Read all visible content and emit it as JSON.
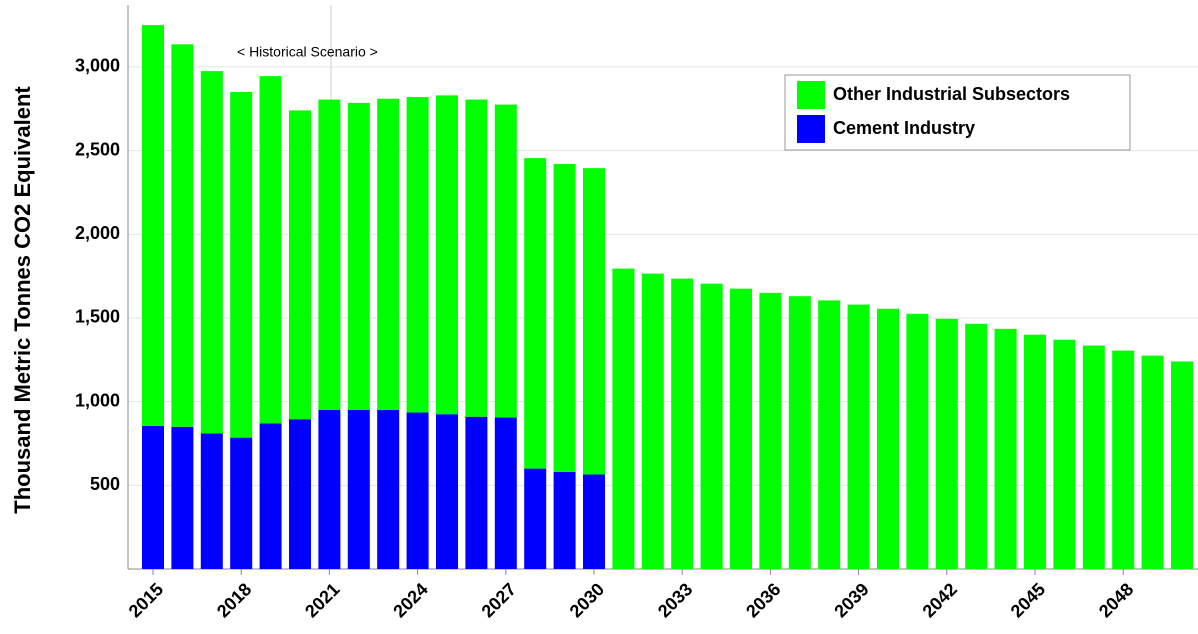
{
  "chart_data": {
    "type": "stacked_bar",
    "y_label": "Thousand Metric Tonnes CO2 Equivalent",
    "annotation": "< Historical   Scenario >",
    "categories": [
      "2015",
      null,
      null,
      "2018",
      null,
      null,
      "2021",
      null,
      null,
      "2024",
      null,
      null,
      "2027",
      null,
      null,
      "2030",
      null,
      null,
      "2033",
      null,
      null,
      "2036",
      null,
      null,
      "2039",
      null,
      null,
      "2042",
      null,
      null,
      "2045",
      null,
      null,
      "2048",
      null,
      null
    ],
    "series": [
      {
        "name": "Cement Industry",
        "color": "#0000ff",
        "values": [
          855,
          850,
          810,
          785,
          870,
          895,
          950,
          950,
          950,
          935,
          925,
          910,
          905,
          600,
          580,
          565,
          0,
          0,
          0,
          0,
          0,
          0,
          0,
          0,
          0,
          0,
          0,
          0,
          0,
          0,
          0,
          0,
          0,
          0,
          0,
          0
        ]
      },
      {
        "name": "Other Industrial Subsectors",
        "color": "#00ff00",
        "values": [
          2395,
          2285,
          2165,
          2065,
          2075,
          1845,
          1855,
          1835,
          1860,
          1885,
          1905,
          1895,
          1870,
          1855,
          1840,
          1830,
          1795,
          1765,
          1735,
          1705,
          1675,
          1650,
          1630,
          1605,
          1580,
          1555,
          1525,
          1495,
          1465,
          1435,
          1400,
          1370,
          1335,
          1305,
          1275,
          1240
        ]
      }
    ],
    "ylim": [
      0,
      3370
    ],
    "yticks": [
      500,
      {
        "value": 1000,
        "label": "1,000"
      },
      {
        "value": 1500,
        "label": "1,500"
      },
      {
        "value": 2000,
        "label": "2,000"
      },
      {
        "value": 2500,
        "label": "2,500"
      },
      {
        "value": 3000,
        "label": "3,000"
      }
    ],
    "grid": true
  }
}
